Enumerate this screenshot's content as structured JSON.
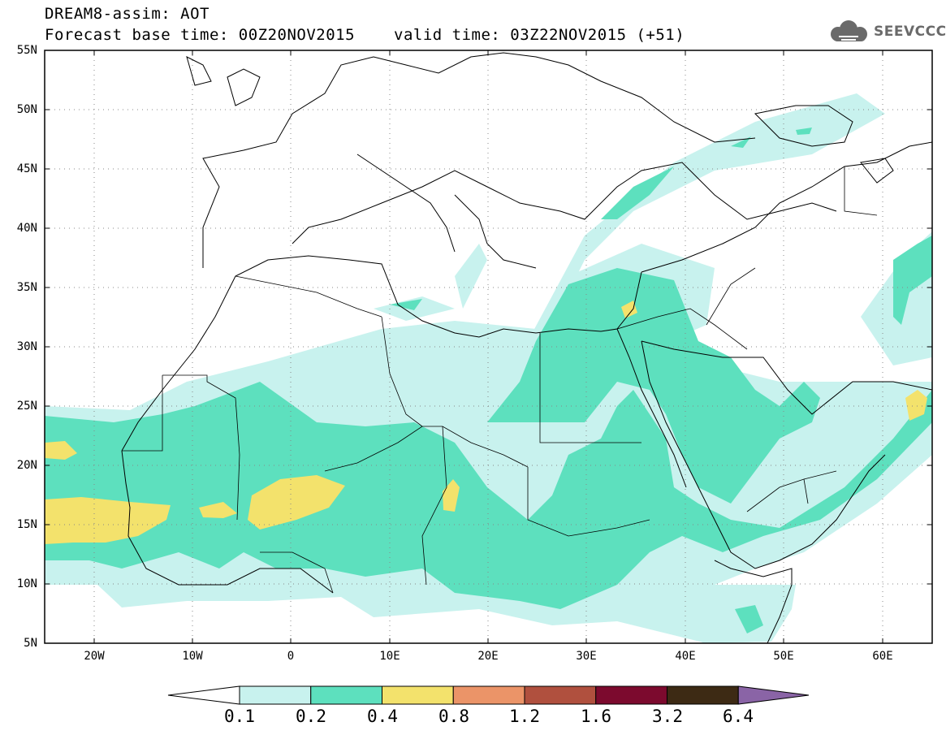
{
  "header": {
    "line1": "DREAM8-assim: AOT",
    "line2": "Forecast base time: 00Z20NOV2015",
    "valid": "valid time: 03Z22NOV2015 (+51)",
    "logo_text": "SEEVCCC",
    "logo_icon": "cloud-logo-icon"
  },
  "map": {
    "lon_range": [
      -25,
      65
    ],
    "lat_range": [
      5,
      55
    ],
    "grid": "dotted",
    "lat_labels": [
      "55N",
      "50N",
      "45N",
      "40N",
      "35N",
      "30N",
      "25N",
      "20N",
      "15N",
      "10N",
      "5N"
    ],
    "lon_labels": [
      "20W",
      "10W",
      "0",
      "10E",
      "20E",
      "30E",
      "40E",
      "50E",
      "60E"
    ]
  },
  "colorbar": {
    "levels": [
      "0.1",
      "0.2",
      "0.4",
      "0.8",
      "1.2",
      "1.6",
      "3.2",
      "6.4"
    ],
    "colors": [
      "#c8f2ee",
      "#5de0be",
      "#f3e26c",
      "#eb9468",
      "#b0503e",
      "#7c0a2e",
      "#3d2a14",
      "#8a64a6"
    ],
    "under_color": "#ffffff"
  }
}
